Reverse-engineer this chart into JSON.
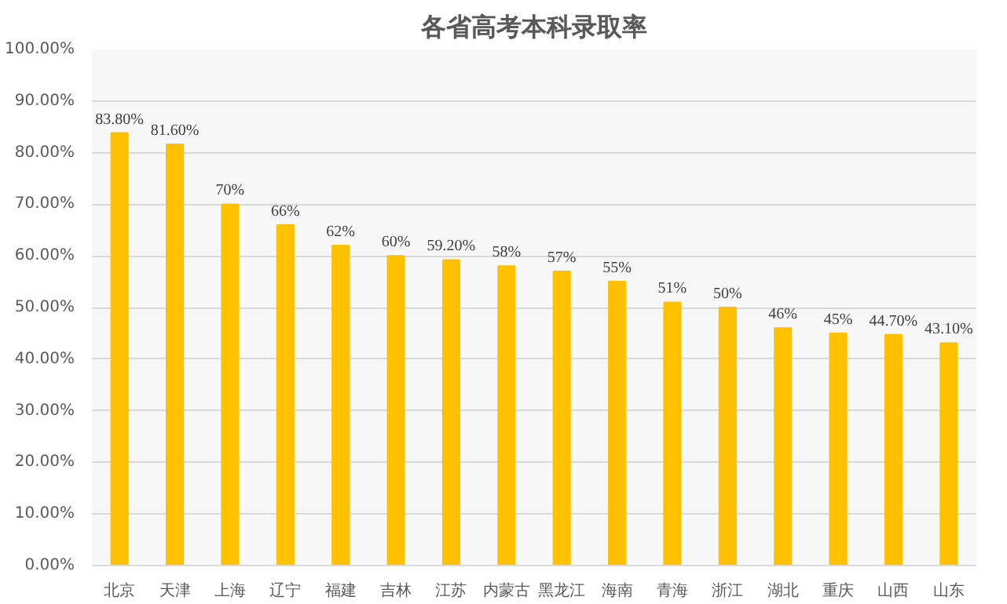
{
  "chart_data": {
    "type": "bar",
    "title": "各省高考本科录取率",
    "categories": [
      "北京",
      "天津",
      "上海",
      "辽宁",
      "福建",
      "吉林",
      "江苏",
      "内蒙古",
      "黑龙江",
      "海南",
      "青海",
      "浙江",
      "湖北",
      "重庆",
      "山西",
      "山东"
    ],
    "values": [
      83.8,
      81.6,
      70,
      66,
      62,
      60,
      59.2,
      58,
      57,
      55,
      51,
      50,
      46,
      45,
      44.7,
      43.1
    ],
    "value_labels": [
      "83.80%",
      "81.60%",
      "70%",
      "66%",
      "62%",
      "60%",
      "59.20%",
      "58%",
      "57%",
      "55%",
      "51%",
      "50%",
      "46%",
      "45%",
      "44.70%",
      "43.10%"
    ],
    "color": "#ffc000",
    "ylim": [
      0,
      100
    ],
    "yticks": [
      {
        "value": 0,
        "label": "0.00%"
      },
      {
        "value": 10,
        "label": "10.00%"
      },
      {
        "value": 20,
        "label": "20.00%"
      },
      {
        "value": 30,
        "label": "30.00%"
      },
      {
        "value": 40,
        "label": "40.00%"
      },
      {
        "value": 50,
        "label": "50.00%"
      },
      {
        "value": 60,
        "label": "60.00%"
      },
      {
        "value": 70,
        "label": "70.00%"
      },
      {
        "value": 80,
        "label": "80.00%"
      },
      {
        "value": 90,
        "label": "90.00%"
      },
      {
        "value": 100,
        "label": "100.00%"
      }
    ],
    "grid": "y"
  }
}
